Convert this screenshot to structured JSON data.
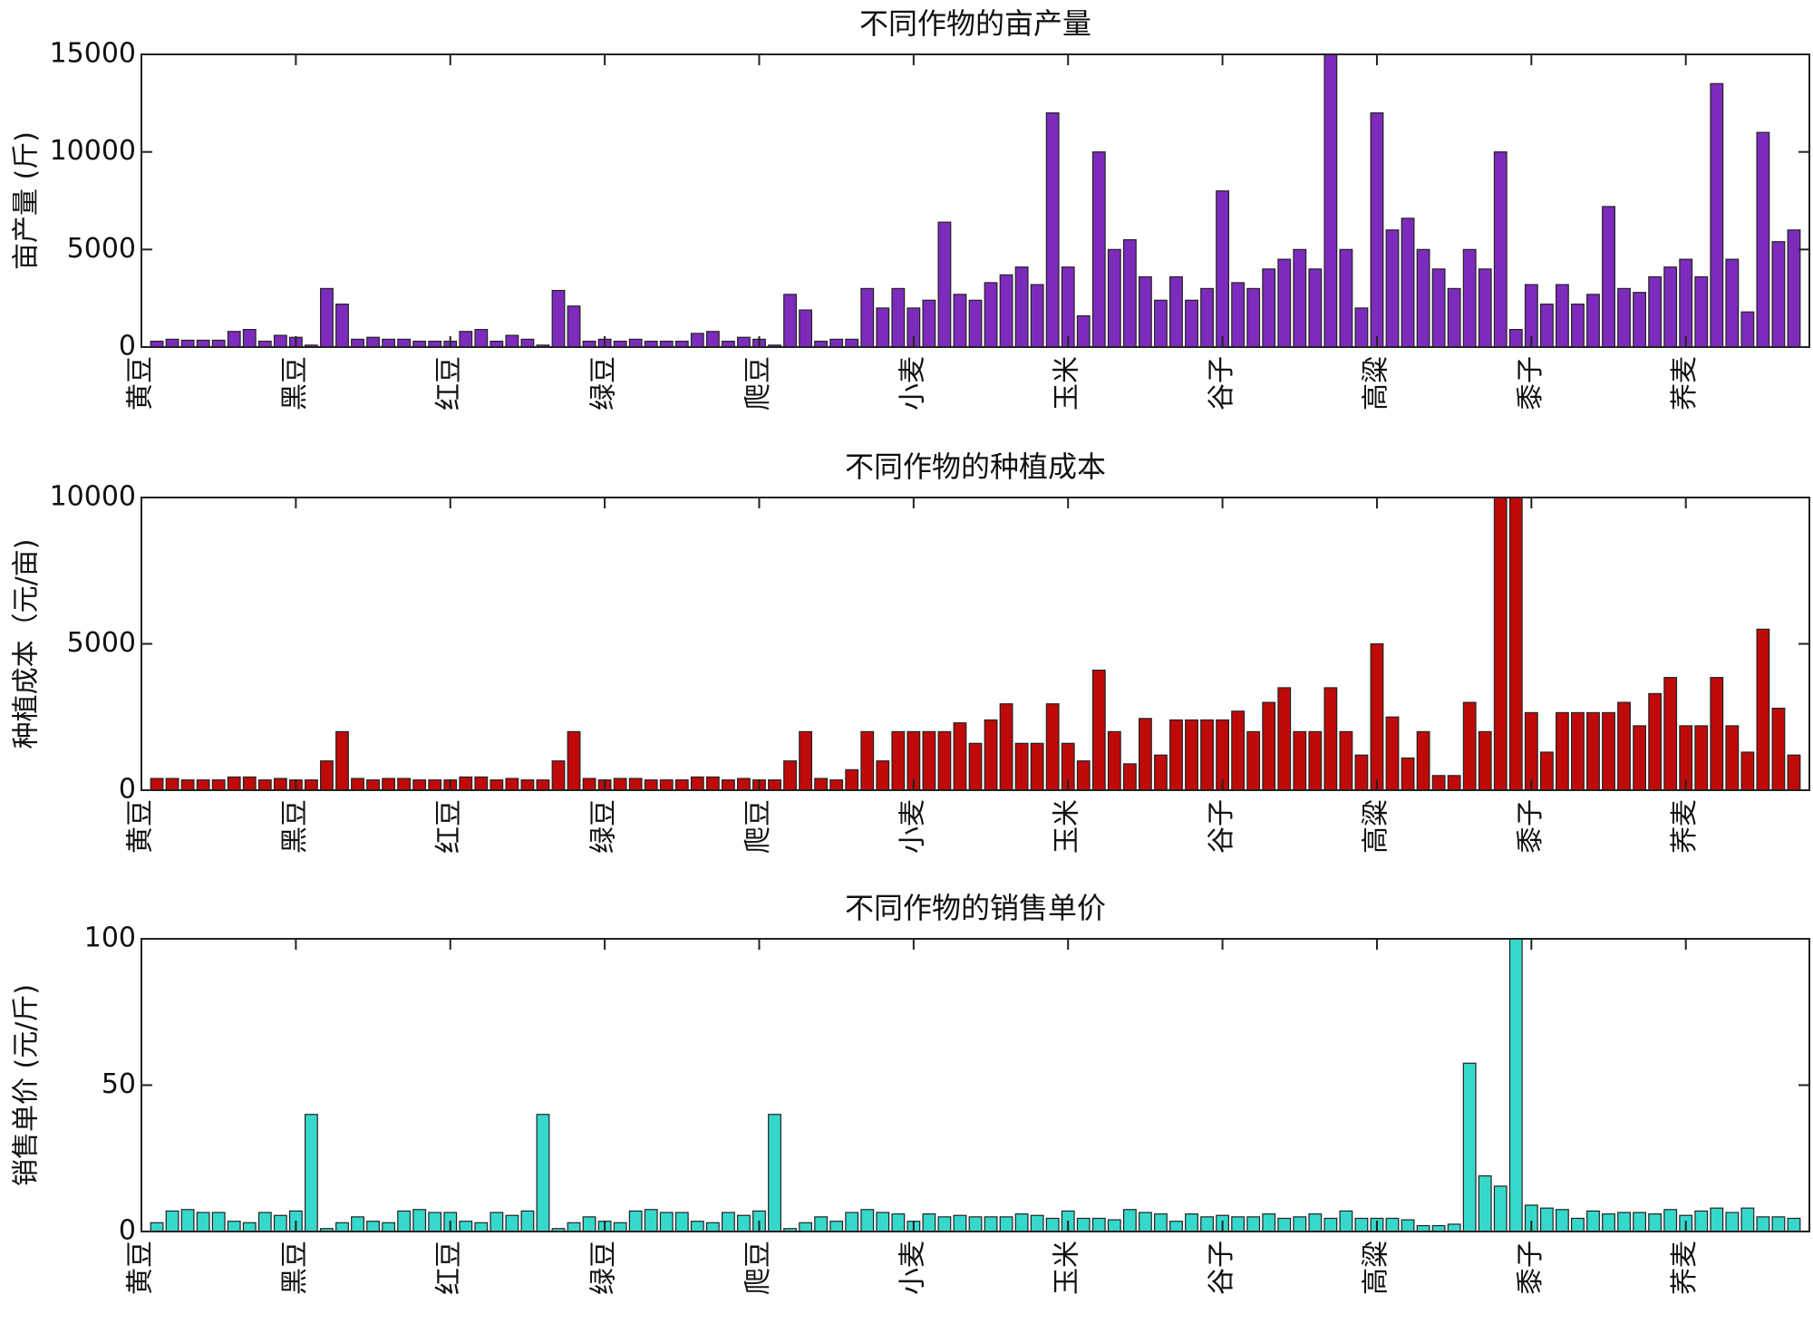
{
  "chart_data": [
    {
      "type": "bar",
      "title": "不同作物的亩产量",
      "ylabel": "亩产量 (斤)",
      "color": "#7d2bbd",
      "values": [
        300,
        400,
        350,
        350,
        350,
        800,
        900,
        300,
        600,
        500,
        100,
        3000,
        2200,
        400,
        500,
        400,
        400,
        300,
        300,
        300,
        800,
        900,
        300,
        600,
        400,
        100,
        2900,
        2100,
        300,
        400,
        300,
        400,
        300,
        300,
        300,
        700,
        800,
        300,
        500,
        400,
        100,
        2700,
        1900,
        300,
        400,
        400,
        3000,
        2000,
        3000,
        2000,
        2400,
        6400,
        2700,
        2400,
        3300,
        3700,
        4100,
        3200,
        12000,
        4100,
        1600,
        10000,
        5000,
        5500,
        3600,
        2400,
        3600,
        2400,
        3000,
        8000,
        3300,
        3000,
        4000,
        4500,
        5000,
        4000,
        15000,
        5000,
        2000,
        12000,
        6000,
        6600,
        5000,
        4000,
        3000,
        5000,
        4000,
        10000,
        900,
        3200,
        2200,
        3200,
        2200,
        2700,
        7200,
        3000,
        2800,
        3600,
        4100,
        4500,
        3600,
        13500,
        4500,
        1800,
        11000,
        5400,
        6000
      ],
      "xlim": [
        0,
        108
      ],
      "xticks": [
        {
          "value": 0,
          "label": "黄豆"
        },
        {
          "value": 10,
          "label": "黑豆"
        },
        {
          "value": 20,
          "label": "红豆"
        },
        {
          "value": 30,
          "label": "绿豆"
        },
        {
          "value": 40,
          "label": "爬豆"
        },
        {
          "value": 50,
          "label": "小麦"
        },
        {
          "value": 60,
          "label": "玉米"
        },
        {
          "value": 70,
          "label": "谷子"
        },
        {
          "value": 80,
          "label": "高粱"
        },
        {
          "value": 90,
          "label": "黍子"
        },
        {
          "value": 100,
          "label": "荞麦"
        }
      ],
      "ylim": [
        0,
        15000
      ],
      "yticks": [
        0,
        5000,
        10000,
        15000
      ]
    },
    {
      "type": "bar",
      "title": "不同作物的种植成本",
      "ylabel": "种植成本（元/亩)",
      "color": "#c00a0a",
      "values": [
        400,
        400,
        350,
        350,
        350,
        450,
        450,
        350,
        400,
        350,
        350,
        1000,
        2000,
        400,
        350,
        400,
        400,
        350,
        350,
        350,
        450,
        450,
        350,
        400,
        350,
        350,
        1000,
        2000,
        400,
        350,
        400,
        400,
        350,
        350,
        350,
        450,
        450,
        350,
        400,
        350,
        350,
        1000,
        2000,
        400,
        350,
        700,
        2000,
        1000,
        2000,
        2000,
        2000,
        2000,
        2300,
        1600,
        2400,
        2950,
        1600,
        1600,
        2950,
        1600,
        1000,
        4100,
        2000,
        900,
        2450,
        1200,
        2400,
        2400,
        2400,
        2400,
        2700,
        2000,
        3000,
        3500,
        2000,
        2000,
        3500,
        2000,
        1200,
        5000,
        2500,
        1100,
        2000,
        500,
        500,
        3000,
        2000,
        10000,
        10000,
        2650,
        1300,
        2650,
        2650,
        2650,
        2650,
        3000,
        2200,
        3300,
        3850,
        2200,
        2200,
        3850,
        2200,
        1300,
        5500,
        2800,
        1200
      ],
      "xlim": [
        0,
        108
      ],
      "xticks": [
        {
          "value": 0,
          "label": "黄豆"
        },
        {
          "value": 10,
          "label": "黑豆"
        },
        {
          "value": 20,
          "label": "红豆"
        },
        {
          "value": 30,
          "label": "绿豆"
        },
        {
          "value": 40,
          "label": "爬豆"
        },
        {
          "value": 50,
          "label": "小麦"
        },
        {
          "value": 60,
          "label": "玉米"
        },
        {
          "value": 70,
          "label": "谷子"
        },
        {
          "value": 80,
          "label": "高粱"
        },
        {
          "value": 90,
          "label": "黍子"
        },
        {
          "value": 100,
          "label": "荞麦"
        }
      ],
      "ylim": [
        0,
        10000
      ],
      "yticks": [
        0,
        5000,
        10000
      ]
    },
    {
      "type": "bar",
      "title": "不同作物的销售单价",
      "ylabel": "销售单价 (元/斤)",
      "color": "#36d8cc",
      "values": [
        3,
        7,
        7.5,
        6.5,
        6.5,
        3.5,
        3,
        6.5,
        5.5,
        7,
        40,
        1,
        3,
        5,
        3.5,
        3,
        7,
        7.5,
        6.5,
        6.5,
        3.5,
        3,
        6.5,
        5.5,
        7,
        40,
        1,
        3,
        5,
        3.5,
        3,
        7,
        7.5,
        6.5,
        6.5,
        3.5,
        3,
        6.5,
        5.5,
        7,
        40,
        1,
        3,
        5,
        3.5,
        6.5,
        7.5,
        6.5,
        6,
        3.5,
        6,
        5,
        5.5,
        5,
        5,
        5,
        6,
        5.5,
        4.5,
        7,
        4.5,
        4.5,
        4,
        7.5,
        6.5,
        6,
        3.5,
        6,
        5,
        5.5,
        5,
        5,
        6,
        4.5,
        5,
        6,
        4.5,
        7,
        4.5,
        4.5,
        4.5,
        4,
        2,
        2,
        2.5,
        57.5,
        19,
        15.5,
        100,
        9,
        8,
        7.5,
        4.5,
        7,
        6,
        6.5,
        6.5,
        6,
        7.5,
        5.5,
        7,
        8,
        6.5,
        8,
        5,
        5,
        4.5
      ],
      "xlim": [
        0,
        108
      ],
      "xticks": [
        {
          "value": 0,
          "label": "黄豆"
        },
        {
          "value": 10,
          "label": "黑豆"
        },
        {
          "value": 20,
          "label": "红豆"
        },
        {
          "value": 30,
          "label": "绿豆"
        },
        {
          "value": 40,
          "label": "爬豆"
        },
        {
          "value": 50,
          "label": "小麦"
        },
        {
          "value": 60,
          "label": "玉米"
        },
        {
          "value": 70,
          "label": "谷子"
        },
        {
          "value": 80,
          "label": "高粱"
        },
        {
          "value": 90,
          "label": "黍子"
        },
        {
          "value": 100,
          "label": "荞麦"
        }
      ],
      "ylim": [
        0,
        100
      ],
      "yticks": [
        0,
        50,
        100
      ]
    }
  ]
}
